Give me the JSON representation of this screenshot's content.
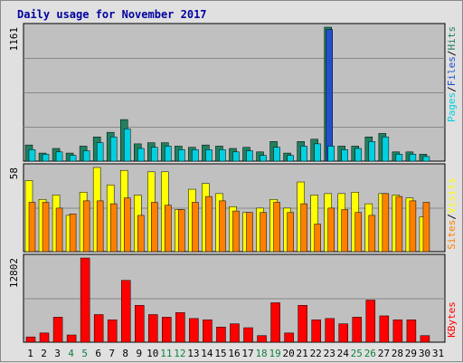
{
  "title": "Daily usage for November 2017",
  "colors": {
    "background": "#e0e0e0",
    "plot_bg": "#c0c0c0",
    "title": "#0000a0",
    "pages": "#00d0e0",
    "files": "#2050d0",
    "hits": "#208060",
    "visits": "#ffff00",
    "sites": "#ff8000",
    "kbytes": "#ff0000",
    "weekend": "#108040",
    "weekday": "#000000"
  },
  "legend": {
    "pages": "Pages",
    "files": "Files",
    "visits": "Visits",
    "sites": "Sites",
    "kbytes": "KBytes",
    "hits": "Hits",
    "slash": "/"
  },
  "chart_data": {
    "type": "bar",
    "title": "Daily usage for November 2017",
    "categories": [
      "1",
      "2",
      "3",
      "4",
      "5",
      "6",
      "7",
      "8",
      "9",
      "10",
      "11",
      "12",
      "13",
      "14",
      "15",
      "16",
      "17",
      "18",
      "19",
      "20",
      "21",
      "22",
      "23",
      "24",
      "25",
      "26",
      "27",
      "28",
      "29",
      "30",
      "31"
    ],
    "weekend_days": [
      "4",
      "5",
      "11",
      "12",
      "18",
      "19",
      "25",
      "26"
    ],
    "panels": [
      {
        "id": "hits-files-pages",
        "axis_max": 1161,
        "axis_label": "1161",
        "series": [
          {
            "name": "Hits",
            "color": "#208060",
            "values": [
              140,
              70,
              110,
              70,
              130,
              210,
              250,
              360,
              150,
              160,
              160,
              130,
              120,
              140,
              130,
              110,
              120,
              80,
              170,
              70,
              170,
              190,
              1161,
              130,
              130,
              210,
              240,
              80,
              80,
              60,
              0
            ]
          },
          {
            "name": "Files",
            "color": "#2050d0",
            "values": [
              0,
              0,
              0,
              0,
              0,
              0,
              0,
              0,
              0,
              0,
              0,
              0,
              0,
              0,
              0,
              0,
              0,
              0,
              0,
              0,
              0,
              0,
              1140,
              0,
              0,
              0,
              0,
              0,
              0,
              0,
              0
            ]
          },
          {
            "name": "Pages",
            "color": "#00d0e0",
            "values": [
              100,
              60,
              80,
              50,
              90,
              160,
              210,
              280,
              110,
              120,
              130,
              100,
              100,
              100,
              100,
              80,
              90,
              50,
              120,
              50,
              130,
              150,
              130,
              100,
              110,
              170,
              210,
              60,
              60,
              40,
              0
            ]
          }
        ]
      },
      {
        "id": "visits-sites",
        "axis_max": 58,
        "axis_label": "58",
        "series": [
          {
            "name": "Visits",
            "color": "#ffff00",
            "values": [
              49,
              36,
              39,
              25,
              41,
              58,
              46,
              56,
              39,
              55,
              55,
              29,
              43,
              47,
              40,
              31,
              27,
              30,
              36,
              30,
              48,
              39,
              40,
              40,
              41,
              33,
              40,
              39,
              37,
              24,
              0
            ]
          },
          {
            "name": "Sites",
            "color": "#ff8000",
            "values": [
              34,
              34,
              30,
              26,
              35,
              35,
              33,
              37,
              25,
              34,
              32,
              29,
              34,
              38,
              35,
              28,
              27,
              27,
              34,
              27,
              33,
              19,
              30,
              29,
              27,
              25,
              40,
              38,
              35,
              34,
              0
            ]
          }
        ]
      },
      {
        "id": "kbytes",
        "axis_max": 12802,
        "axis_label": "12802",
        "series": [
          {
            "name": "KBytes",
            "color": "#ff0000",
            "values": [
              800,
              1400,
              3800,
              1100,
              12802,
              4200,
              3400,
              9400,
              5600,
              4200,
              3800,
              4500,
              3600,
              3400,
              2300,
              2800,
              2200,
              1000,
              6000,
              1400,
              5600,
              3400,
              3600,
              2800,
              3800,
              6400,
              4000,
              3400,
              3400,
              1000,
              0
            ]
          }
        ]
      }
    ]
  }
}
